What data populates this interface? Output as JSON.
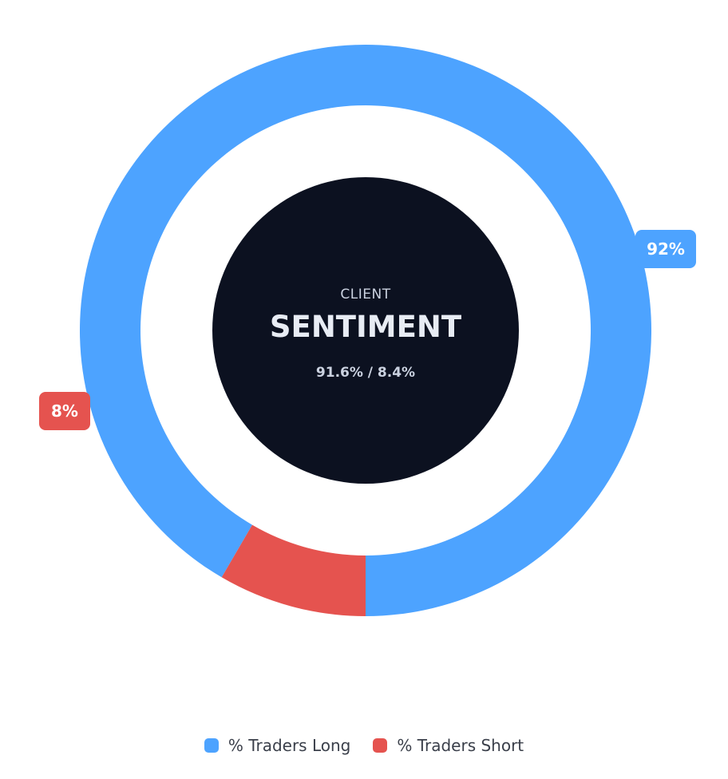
{
  "chart_data": {
    "type": "pie",
    "variant": "donut",
    "center": {
      "subtitle": "CLIENT",
      "title": "SENTIMENT",
      "ratio_text": "91.6% / 8.4%"
    },
    "series": [
      {
        "name": "% Traders Long",
        "value": 91.6,
        "label": "92%",
        "color": "#4da3ff"
      },
      {
        "name": "% Traders Short",
        "value": 8.4,
        "label": "8%",
        "color": "#e5534f"
      }
    ],
    "legend_position": "bottom-center"
  },
  "colors": {
    "center_fill": "#0c1120",
    "background": "#ffffff"
  }
}
